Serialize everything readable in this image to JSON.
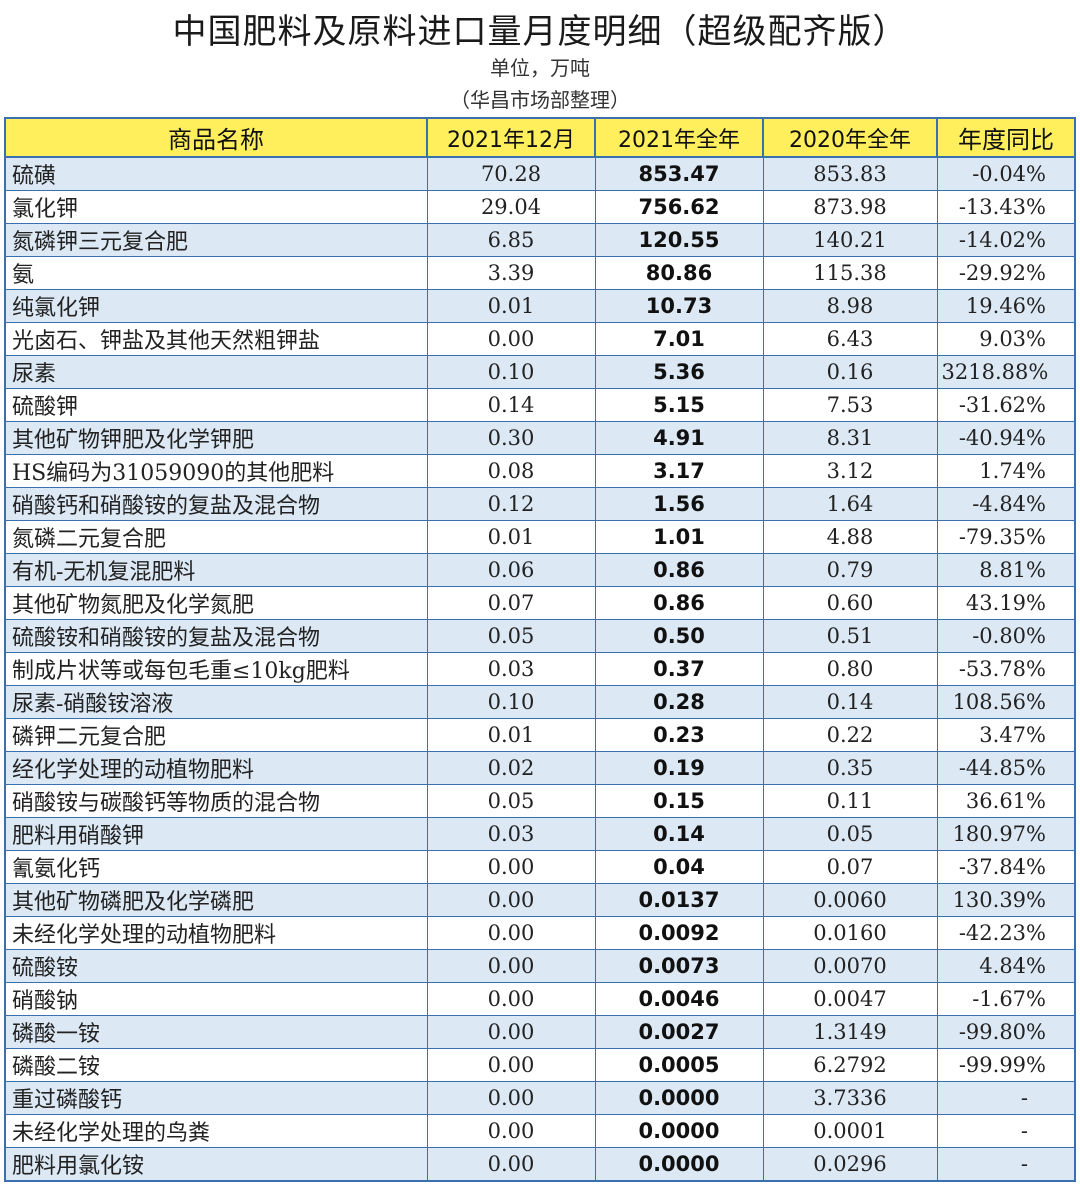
{
  "title": "中国肥料及原料进口量月度明细（超级配齐版）",
  "unit": "单位，万吨",
  "source": "（华昌市场部整理）",
  "headers": [
    "商品名称",
    "2021年12月",
    "2021年全年",
    "2020年全年",
    "年度同比"
  ],
  "rows": [
    [
      "硫磺",
      "70.28",
      "853.47",
      "853.83",
      "-0.04%"
    ],
    [
      "氯化钾",
      "29.04",
      "756.62",
      "873.98",
      "-13.43%"
    ],
    [
      "氮磷钾三元复合肥",
      "6.85",
      "120.55",
      "140.21",
      "-14.02%"
    ],
    [
      "氨",
      "3.39",
      "80.86",
      "115.38",
      "-29.92%"
    ],
    [
      "纯氯化钾",
      "0.01",
      "10.73",
      "8.98",
      "19.46%"
    ],
    [
      "光卤石、钾盐及其他天然粗钾盐",
      "0.00",
      "7.01",
      "6.43",
      "9.03%"
    ],
    [
      "尿素",
      "0.10",
      "5.36",
      "0.16",
      "3218.88%"
    ],
    [
      "硫酸钾",
      "0.14",
      "5.15",
      "7.53",
      "-31.62%"
    ],
    [
      "其他矿物钾肥及化学钾肥",
      "0.30",
      "4.91",
      "8.31",
      "-40.94%"
    ],
    [
      "HS编码为31059090的其他肥料",
      "0.08",
      "3.17",
      "3.12",
      "1.74%"
    ],
    [
      "硝酸钙和硝酸铵的复盐及混合物",
      "0.12",
      "1.56",
      "1.64",
      "-4.84%"
    ],
    [
      "氮磷二元复合肥",
      "0.01",
      "1.01",
      "4.88",
      "-79.35%"
    ],
    [
      "有机-无机复混肥料",
      "0.06",
      "0.86",
      "0.79",
      "8.81%"
    ],
    [
      "其他矿物氮肥及化学氮肥",
      "0.07",
      "0.86",
      "0.60",
      "43.19%"
    ],
    [
      "硫酸铵和硝酸铵的复盐及混合物",
      "0.05",
      "0.50",
      "0.51",
      "-0.80%"
    ],
    [
      "制成片状等或每包毛重≤10kg肥料",
      "0.03",
      "0.37",
      "0.80",
      "-53.78%"
    ],
    [
      "尿素-硝酸铵溶液",
      "0.10",
      "0.28",
      "0.14",
      "108.56%"
    ],
    [
      "磷钾二元复合肥",
      "0.01",
      "0.23",
      "0.22",
      "3.47%"
    ],
    [
      "经化学处理的动植物肥料",
      "0.02",
      "0.19",
      "0.35",
      "-44.85%"
    ],
    [
      "硝酸铵与碳酸钙等物质的混合物",
      "0.05",
      "0.15",
      "0.11",
      "36.61%"
    ],
    [
      "肥料用硝酸钾",
      "0.03",
      "0.14",
      "0.05",
      "180.97%"
    ],
    [
      "氰氨化钙",
      "0.00",
      "0.04",
      "0.07",
      "-37.84%"
    ],
    [
      "其他矿物磷肥及化学磷肥",
      "0.00",
      "0.0137",
      "0.0060",
      "130.39%"
    ],
    [
      "未经化学处理的动植物肥料",
      "0.00",
      "0.0092",
      "0.0160",
      "-42.23%"
    ],
    [
      "硫酸铵",
      "0.00",
      "0.0073",
      "0.0070",
      "4.84%"
    ],
    [
      "硝酸钠",
      "0.00",
      "0.0046",
      "0.0047",
      "-1.67%"
    ],
    [
      "磷酸一铵",
      "0.00",
      "0.0027",
      "1.3149",
      "-99.80%"
    ],
    [
      "磷酸二铵",
      "0.00",
      "0.0005",
      "6.2792",
      "-99.99%"
    ],
    [
      "重过磷酸钙",
      "0.00",
      "0.0000",
      "3.7336",
      "-"
    ],
    [
      "未经化学处理的鸟粪",
      "0.00",
      "0.0000",
      "0.0001",
      "-"
    ],
    [
      "肥料用氯化铵",
      "0.00",
      "0.0000",
      "0.0296",
      "-"
    ]
  ],
  "colors": {
    "header_bg": "#ffef5c",
    "row_alt_bg": "#dce8f4",
    "border": "#3a6fb0"
  }
}
